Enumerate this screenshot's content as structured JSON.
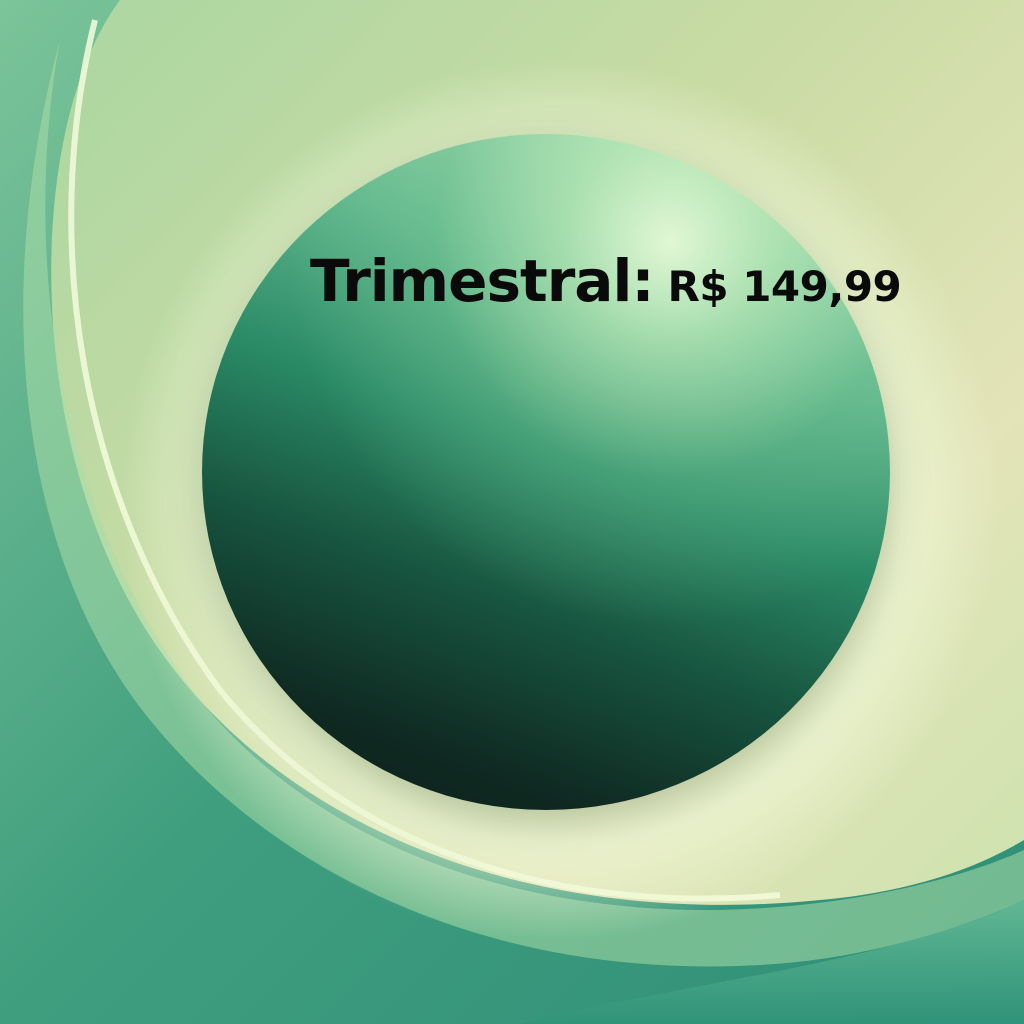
{
  "offer": {
    "label": "Trimestral:",
    "price": "R$ 149,99"
  },
  "colors": {
    "background_light": "#e3e4b8",
    "background_green": "#3e9e80",
    "sphere_highlight": "#d8f7cf",
    "sphere_dark": "#0b1c17",
    "text": "#0a0a0a"
  }
}
